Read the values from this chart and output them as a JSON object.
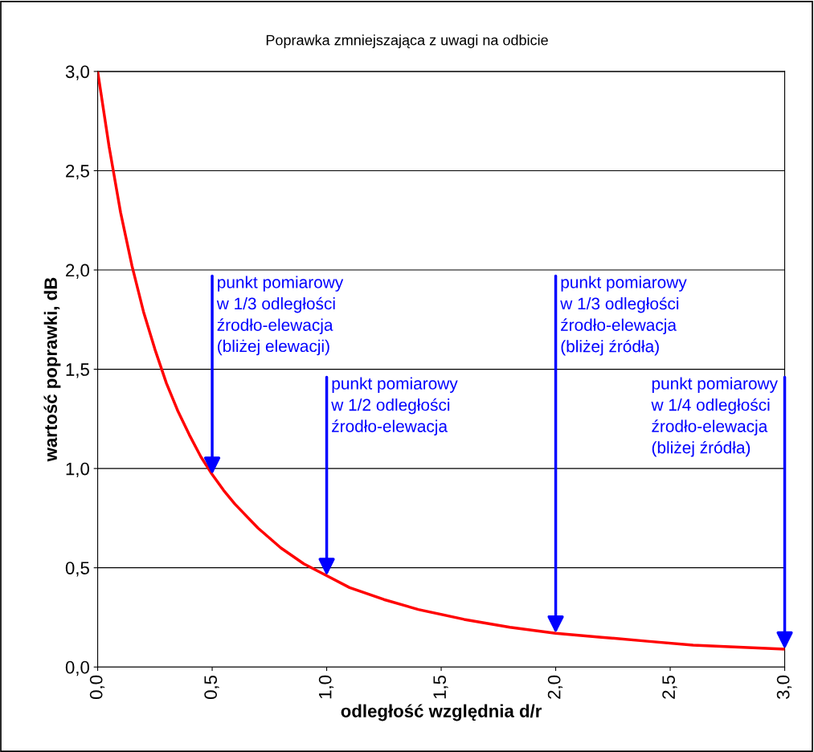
{
  "chart_data": {
    "type": "line",
    "title": "Poprawka zmniejszająca z uwagi na odbicie",
    "xlabel": "odległość względnia d/r",
    "ylabel": "wartość poprawki, dB",
    "series": [
      {
        "color": "#ff0000",
        "x": [
          0,
          0.05,
          0.1,
          0.15,
          0.2,
          0.25,
          0.3,
          0.35,
          0.4,
          0.45,
          0.5,
          0.55,
          0.6,
          0.7,
          0.8,
          0.9,
          1.0,
          1.1,
          1.25,
          1.4,
          1.6,
          1.8,
          2.0,
          2.2,
          2.4,
          2.6,
          2.8,
          3.0
        ],
        "values": [
          3.0,
          2.62,
          2.29,
          2.02,
          1.79,
          1.6,
          1.43,
          1.29,
          1.17,
          1.06,
          0.97,
          0.89,
          0.82,
          0.7,
          0.6,
          0.52,
          0.46,
          0.4,
          0.34,
          0.29,
          0.24,
          0.2,
          0.17,
          0.15,
          0.13,
          0.11,
          0.1,
          0.09
        ]
      }
    ],
    "xlim": [
      0,
      3
    ],
    "ylim": [
      0,
      3
    ],
    "xticks": [
      {
        "value": 0,
        "label": "0,0"
      },
      {
        "value": 0.5,
        "label": "0,5"
      },
      {
        "value": 1,
        "label": "1,0"
      },
      {
        "value": 1.5,
        "label": "1,5"
      },
      {
        "value": 2,
        "label": "2,0"
      },
      {
        "value": 2.5,
        "label": "2,5"
      },
      {
        "value": 3,
        "label": "3,0"
      }
    ],
    "yticks": [
      {
        "value": 0,
        "label": "0,0"
      },
      {
        "value": 0.5,
        "label": "0,5"
      },
      {
        "value": 1,
        "label": "1,0"
      },
      {
        "value": 1.5,
        "label": "1,5"
      },
      {
        "value": 2,
        "label": "2,0"
      },
      {
        "value": 2.5,
        "label": "2,5"
      },
      {
        "value": 3,
        "label": "3,0"
      }
    ],
    "grid": "y",
    "marker": "none",
    "line_style": "solid",
    "legend": false,
    "annotations": [
      {
        "text": "punkt pomiarowy\nw 1/3 odległości\nźrodło-elewacja\n(bliżej elewacji)",
        "x": 0.5,
        "y": 0.97
      },
      {
        "text": "punkt pomiarowy\nw 1/2 odległości\nźrodło-elewacja",
        "x": 1.0,
        "y": 0.46
      },
      {
        "text": "punkt pomiarowy\nw 1/3 odległości\nźrodło-elewacja\n(bliżej źródła)",
        "x": 2.0,
        "y": 0.17
      },
      {
        "text": "punkt pomiarowy\nw 1/4 odległości\nźrodło-elewacja\n(bliżej źródła)",
        "x": 3.0,
        "y": 0.09
      }
    ]
  }
}
